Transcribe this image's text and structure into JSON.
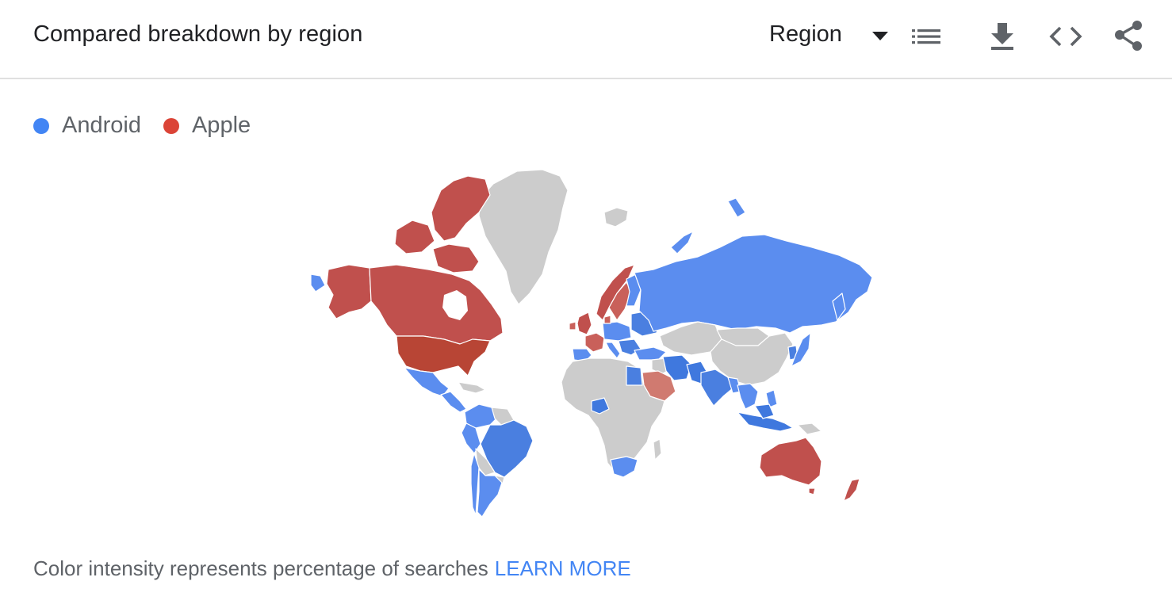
{
  "header": {
    "title": "Compared breakdown by region",
    "region_label": "Region",
    "icons": [
      "list-icon",
      "download-icon",
      "embed-icon",
      "share-icon"
    ]
  },
  "legend": {
    "items": [
      {
        "label": "Android",
        "color": "#4285f4"
      },
      {
        "label": "Apple",
        "color": "#db4437"
      }
    ]
  },
  "map": {
    "no_data_color": "#cccccc",
    "regions": [
      {
        "name": "Canada",
        "winner": "Apple"
      },
      {
        "name": "Alaska",
        "winner": "Apple"
      },
      {
        "name": "United States",
        "winner": "Apple"
      },
      {
        "name": "Canadian Arctic Islands",
        "winner": "Apple"
      },
      {
        "name": "United Kingdom",
        "winner": "Apple"
      },
      {
        "name": "Ireland",
        "winner": "Apple"
      },
      {
        "name": "Norway",
        "winner": "Apple"
      },
      {
        "name": "Sweden",
        "winner": "Apple"
      },
      {
        "name": "Denmark",
        "winner": "Apple"
      },
      {
        "name": "France",
        "winner": "Apple"
      },
      {
        "name": "Switzerland",
        "winner": "Apple"
      },
      {
        "name": "Saudi Arabia",
        "winner": "Apple"
      },
      {
        "name": "Australia",
        "winner": "Apple"
      },
      {
        "name": "New Zealand",
        "winner": "Apple"
      },
      {
        "name": "Mexico",
        "winner": "Android"
      },
      {
        "name": "Brazil",
        "winner": "Android"
      },
      {
        "name": "Argentina",
        "winner": "Android"
      },
      {
        "name": "Chile",
        "winner": "Android"
      },
      {
        "name": "Peru",
        "winner": "Android"
      },
      {
        "name": "Colombia",
        "winner": "Android"
      },
      {
        "name": "Russia",
        "winner": "Android"
      },
      {
        "name": "Finland",
        "winner": "Android"
      },
      {
        "name": "Spain",
        "winner": "Android"
      },
      {
        "name": "Italy",
        "winner": "Android"
      },
      {
        "name": "Germany",
        "winner": "Android"
      },
      {
        "name": "Poland",
        "winner": "Android"
      },
      {
        "name": "Turkey",
        "winner": "Android"
      },
      {
        "name": "Egypt",
        "winner": "Android"
      },
      {
        "name": "Nigeria",
        "winner": "Android"
      },
      {
        "name": "South Africa",
        "winner": "Android"
      },
      {
        "name": "Iran",
        "winner": "Android"
      },
      {
        "name": "Pakistan",
        "winner": "Android"
      },
      {
        "name": "India",
        "winner": "Android"
      },
      {
        "name": "Bangladesh",
        "winner": "Android"
      },
      {
        "name": "Thailand",
        "winner": "Android"
      },
      {
        "name": "Vietnam",
        "winner": "Android"
      },
      {
        "name": "Indonesia",
        "winner": "Android"
      },
      {
        "name": "Philippines",
        "winner": "Android"
      },
      {
        "name": "Malaysia",
        "winner": "Android"
      },
      {
        "name": "Japan",
        "winner": "Android"
      },
      {
        "name": "South Korea",
        "winner": "Android"
      },
      {
        "name": "Greenland",
        "winner": "none"
      },
      {
        "name": "China",
        "winner": "none"
      },
      {
        "name": "Mongolia",
        "winner": "none"
      },
      {
        "name": "Kazakhstan",
        "winner": "none"
      },
      {
        "name": "Central Africa",
        "winner": "none"
      },
      {
        "name": "Iceland",
        "winner": "none"
      }
    ]
  },
  "footer": {
    "note": "Color intensity represents percentage of searches",
    "link": "LEARN MORE"
  }
}
